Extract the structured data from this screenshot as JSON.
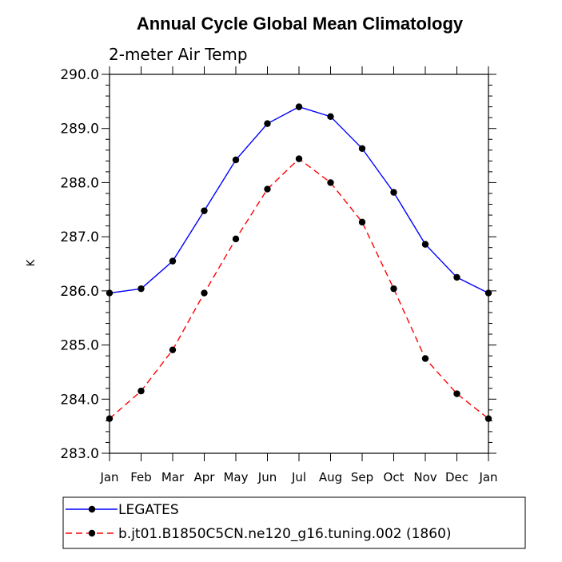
{
  "chart_data": {
    "type": "line",
    "title": "Annual Cycle Global Mean Climatology",
    "subtitle": "2-meter Air Temp",
    "ylabel": "K",
    "xlabel": "",
    "categories": [
      "Jan",
      "Feb",
      "Mar",
      "Apr",
      "May",
      "Jun",
      "Jul",
      "Aug",
      "Sep",
      "Oct",
      "Nov",
      "Dec",
      "Jan"
    ],
    "ylim": [
      283.0,
      290.0
    ],
    "yticks": [
      "283.0",
      "284.0",
      "285.0",
      "286.0",
      "287.0",
      "288.0",
      "289.0",
      "290.0"
    ],
    "grid": false,
    "legend_position": "bottom",
    "series": [
      {
        "name": "LEGATES",
        "color": "#0000ff",
        "dash": "solid",
        "marker": "dot",
        "values": [
          285.96,
          286.04,
          286.55,
          287.48,
          288.42,
          289.09,
          289.4,
          289.22,
          288.63,
          287.82,
          286.86,
          286.25,
          285.96
        ]
      },
      {
        "name": "b.jt01.B1850C5CN.ne120_g16.tuning.002 (1860)",
        "color": "#ff0000",
        "dash": "dashed",
        "marker": "dot",
        "values": [
          283.64,
          284.15,
          284.91,
          285.96,
          286.96,
          287.88,
          288.44,
          288.0,
          287.27,
          286.04,
          284.75,
          284.1,
          283.64
        ]
      }
    ]
  }
}
